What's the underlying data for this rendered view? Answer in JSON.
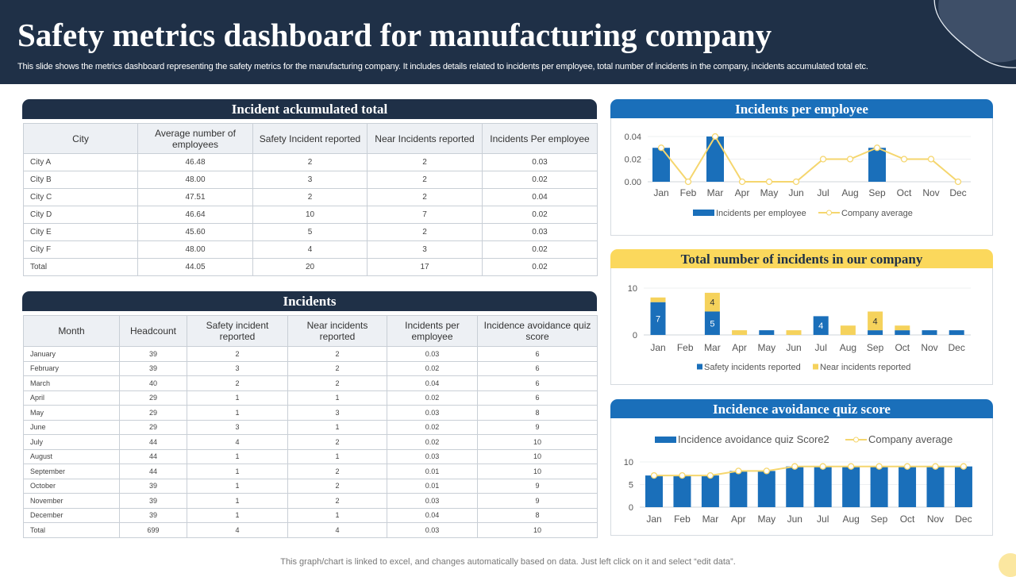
{
  "header": {
    "title": "Safety metrics dashboard for manufacturing company",
    "subtitle": "This slide shows the metrics dashboard representing the safety metrics for the manufacturing company. It includes details related to incidents per employee, total number of incidents in the company, incidents accumulated total etc."
  },
  "table1": {
    "title": "Incident ackumulated total",
    "headers": [
      "City",
      "Average number of employees",
      "Safety Incident reported",
      "Near Incidents reported",
      "Incidents Per employee"
    ],
    "rows": [
      [
        "City A",
        "46.48",
        "2",
        "2",
        "0.03"
      ],
      [
        "City B",
        "48.00",
        "3",
        "2",
        "0.02"
      ],
      [
        "City C",
        "47.51",
        "2",
        "2",
        "0.04"
      ],
      [
        "City D",
        "46.64",
        "10",
        "7",
        "0.02"
      ],
      [
        "City E",
        "45.60",
        "5",
        "2",
        "0.03"
      ],
      [
        "City F",
        "48.00",
        "4",
        "3",
        "0.02"
      ],
      [
        "Total",
        "44.05",
        "20",
        "17",
        "0.02"
      ]
    ]
  },
  "table2": {
    "title": "Incidents",
    "headers": [
      "Month",
      "Headcount",
      "Safety incident reported",
      "Near incidents reported",
      "Incidents per employee",
      "Incidence avoidance quiz score"
    ],
    "rows": [
      [
        "January",
        "39",
        "2",
        "2",
        "0.03",
        "6"
      ],
      [
        "February",
        "39",
        "3",
        "2",
        "0.02",
        "6"
      ],
      [
        "March",
        "40",
        "2",
        "2",
        "0.04",
        "6"
      ],
      [
        "April",
        "29",
        "1",
        "1",
        "0.02",
        "6"
      ],
      [
        "May",
        "29",
        "1",
        "3",
        "0.03",
        "8"
      ],
      [
        "June",
        "29",
        "3",
        "1",
        "0.02",
        "9"
      ],
      [
        "July",
        "44",
        "4",
        "2",
        "0.02",
        "10"
      ],
      [
        "August",
        "44",
        "1",
        "1",
        "0.03",
        "10"
      ],
      [
        "September",
        "44",
        "1",
        "2",
        "0.01",
        "10"
      ],
      [
        "October",
        "39",
        "1",
        "2",
        "0.01",
        "9"
      ],
      [
        "November",
        "39",
        "1",
        "2",
        "0.03",
        "9"
      ],
      [
        "December",
        "39",
        "1",
        "1",
        "0.04",
        "8"
      ],
      [
        "Total",
        "699",
        "4",
        "4",
        "0.03",
        "10"
      ]
    ]
  },
  "chart_data": [
    {
      "type": "bar",
      "title": "Incidents per employee",
      "categories": [
        "Jan",
        "Feb",
        "Mar",
        "Apr",
        "May",
        "Jun",
        "Jul",
        "Aug",
        "Sep",
        "Oct",
        "Nov",
        "Dec"
      ],
      "yticks": [
        "0.04",
        "0.02",
        "0.00"
      ],
      "ylim": [
        0,
        0.04
      ],
      "legend": "bottom",
      "series": [
        {
          "name": "Incidents per employee",
          "kind": "bar",
          "color": "#1a6fba",
          "values": [
            0.03,
            0,
            0.04,
            0,
            0,
            0,
            0,
            0,
            0.03,
            0,
            0,
            0
          ]
        },
        {
          "name": "Company average",
          "kind": "line",
          "color": "#f5d66e",
          "values": [
            0.03,
            0,
            0.04,
            0,
            0,
            0,
            0.02,
            0.02,
            0.03,
            0.02,
            0.02,
            0
          ]
        }
      ]
    },
    {
      "type": "bar",
      "stacked": true,
      "title": "Total number of incidents in our company",
      "categories": [
        "Jan",
        "Feb",
        "Mar",
        "Apr",
        "May",
        "Jun",
        "Jul",
        "Aug",
        "Sep",
        "Oct",
        "Nov",
        "Dec"
      ],
      "yticks": [
        "10",
        "0"
      ],
      "ylim": [
        0,
        10
      ],
      "legend": "bottom",
      "series": [
        {
          "name": "Safety incidents reported",
          "color": "#1a6fba",
          "values": [
            7,
            0,
            5,
            0,
            1,
            0,
            4,
            0,
            1,
            1,
            1,
            1
          ],
          "labels": [
            "7",
            "",
            "5",
            "",
            "",
            "",
            "4",
            "",
            "",
            "",
            "",
            ""
          ]
        },
        {
          "name": "Near incidents reported",
          "color": "#f5d25c",
          "values": [
            1,
            0,
            4,
            1,
            0,
            1,
            0,
            2,
            4,
            1,
            0,
            0
          ],
          "labels": [
            "",
            "",
            "4",
            "",
            "",
            "",
            "",
            "",
            "4",
            "",
            "",
            ""
          ]
        }
      ]
    },
    {
      "type": "bar",
      "title": "Incidence avoidance quiz score",
      "categories": [
        "Jan",
        "Feb",
        "Mar",
        "Apr",
        "May",
        "Jun",
        "Jul",
        "Aug",
        "Sep",
        "Oct",
        "Nov",
        "Dec"
      ],
      "yticks": [
        "10",
        "5",
        "0"
      ],
      "ylim": [
        0,
        10
      ],
      "legend": "top",
      "series": [
        {
          "name": "Incidence avoidance quiz Score2",
          "kind": "bar",
          "color": "#1a6fba",
          "values": [
            7,
            7,
            7,
            8,
            8,
            9,
            9,
            9,
            9,
            9,
            9,
            9
          ]
        },
        {
          "name": "Company average",
          "kind": "line",
          "color": "#f5d66e",
          "values": [
            7,
            7,
            7,
            8,
            8,
            9,
            9,
            9,
            9,
            9,
            9,
            9
          ]
        }
      ]
    }
  ],
  "footer": "This graph/chart is linked to excel,  and changes automatically based on data. Just left click on it and select “edit data”."
}
